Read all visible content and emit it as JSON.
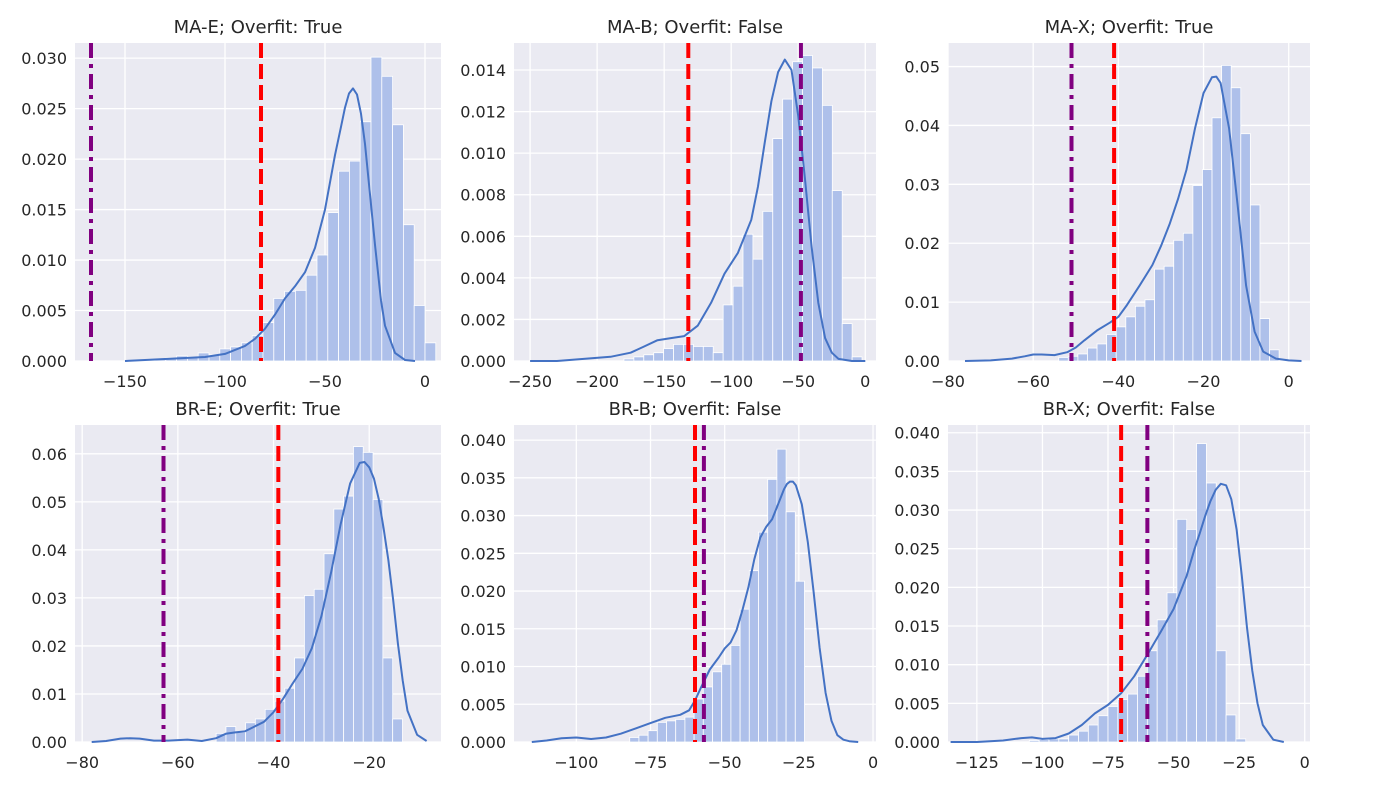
{
  "figure": {
    "grid": true,
    "colors": {
      "panel_background": "#eaeaf2",
      "grid": "#ffffff",
      "histogram": "#aec0ea",
      "kde_line": "#4472c4",
      "threshold_dashed": "#ff0000",
      "threshold_dashdot": "#800080"
    }
  },
  "chart_data": [
    {
      "type": "histogram",
      "title": "MA-E; Overfit: True",
      "xlim": [
        -175,
        8
      ],
      "ylim": [
        0,
        0.0315
      ],
      "xticks": [
        -150,
        -100,
        -50,
        0
      ],
      "xticklabels": [
        "−150",
        "−100",
        "−50",
        "0"
      ],
      "yticks": [
        0,
        0.005,
        0.01,
        0.015,
        0.02,
        0.025,
        0.03
      ],
      "yticklabels": [
        "0.000",
        "0.005",
        "0.010",
        "0.015",
        "0.020",
        "0.025",
        "0.030"
      ],
      "bins": {
        "start": -135,
        "width": 5.4,
        "values": [
          0.0002,
          0.0003,
          0.0005,
          0.0004,
          0.0008,
          0.0006,
          0.0012,
          0.0014,
          0.0018,
          0.0025,
          0.0038,
          0.0062,
          0.0069,
          0.007,
          0.0085,
          0.0105,
          0.0147,
          0.0188,
          0.0198,
          0.0237,
          0.0301,
          0.0282,
          0.0234,
          0.0135,
          0.0055,
          0.0018
        ]
      },
      "kde": {
        "x": [
          -150,
          -140,
          -130,
          -120,
          -110,
          -100,
          -95,
          -90,
          -85,
          -80,
          -75,
          -70,
          -65,
          -60,
          -55,
          -50,
          -45,
          -42,
          -40,
          -38,
          -36,
          -34,
          -32,
          -30,
          -28,
          -25,
          -22,
          -20,
          -15,
          -10,
          -5
        ],
        "y": [
          0.0,
          0.0001,
          0.0002,
          0.0003,
          0.0004,
          0.0007,
          0.0011,
          0.0015,
          0.0022,
          0.0032,
          0.0046,
          0.0062,
          0.0074,
          0.0088,
          0.0112,
          0.015,
          0.0204,
          0.0232,
          0.0251,
          0.0265,
          0.027,
          0.0264,
          0.0245,
          0.0215,
          0.0175,
          0.0115,
          0.006,
          0.0035,
          0.0008,
          0.0001,
          0.0
        ]
      },
      "dashed_line_x": -82,
      "dashdot_line_x": -167
    },
    {
      "type": "histogram",
      "title": "MA-B; Overfit: False",
      "xlim": [
        -262,
        8
      ],
      "ylim": [
        0,
        0.0153
      ],
      "xticks": [
        -250,
        -200,
        -150,
        -100,
        -50,
        0
      ],
      "xticklabels": [
        "−250",
        "−200",
        "−150",
        "−100",
        "−50",
        "0"
      ],
      "yticks": [
        0,
        0.002,
        0.004,
        0.006,
        0.008,
        0.01,
        0.012,
        0.014
      ],
      "yticklabels": [
        "0.000",
        "0.002",
        "0.004",
        "0.006",
        "0.008",
        "0.010",
        "0.012",
        "0.014"
      ],
      "bins": {
        "start": -180,
        "width": 7.4,
        "values": [
          0.0001,
          0.0002,
          0.0003,
          0.0004,
          0.0006,
          0.0008,
          0.0008,
          0.0007,
          0.0007,
          0.0004,
          0.0027,
          0.0036,
          0.0061,
          0.0049,
          0.0072,
          0.0107,
          0.0126,
          0.0144,
          0.0147,
          0.0141,
          0.0123,
          0.0082,
          0.0018,
          0.0002
        ]
      },
      "kde": {
        "x": [
          -250,
          -230,
          -210,
          -190,
          -175,
          -165,
          -155,
          -145,
          -135,
          -125,
          -115,
          -105,
          -95,
          -85,
          -80,
          -75,
          -70,
          -65,
          -60,
          -55,
          -50,
          -45,
          -40,
          -35,
          -30,
          -25,
          -20,
          -10,
          0
        ],
        "y": [
          0.0,
          0.0,
          0.0001,
          0.0002,
          0.0004,
          0.0007,
          0.001,
          0.0011,
          0.0012,
          0.0017,
          0.0028,
          0.0042,
          0.0052,
          0.0068,
          0.0084,
          0.0105,
          0.0125,
          0.0139,
          0.0145,
          0.014,
          0.0118,
          0.0088,
          0.0055,
          0.0028,
          0.0011,
          0.0004,
          0.0001,
          0.0,
          0.0
        ]
      },
      "dashed_line_x": -132,
      "dashdot_line_x": -48
    },
    {
      "type": "histogram",
      "title": "MA-X; Overfit: True",
      "xlim": [
        -80,
        5
      ],
      "ylim": [
        0,
        0.054
      ],
      "xticks": [
        -80,
        -60,
        -40,
        -20,
        0
      ],
      "xticklabels": [
        "−80",
        "−60",
        "−40",
        "−20",
        "0"
      ],
      "yticks": [
        0,
        0.01,
        0.02,
        0.03,
        0.04,
        0.05
      ],
      "yticklabels": [
        "0.00",
        "0.01",
        "0.02",
        "0.03",
        "0.04",
        "0.05"
      ],
      "bins": {
        "start": -54,
        "width": 2.25,
        "values": [
          0.0006,
          0.0008,
          0.0012,
          0.0022,
          0.0029,
          0.0045,
          0.0058,
          0.0075,
          0.0093,
          0.0104,
          0.0156,
          0.0161,
          0.0205,
          0.0217,
          0.0298,
          0.0325,
          0.0413,
          0.0502,
          0.0464,
          0.0386,
          0.0265,
          0.0072,
          0.0019
        ]
      },
      "kde": {
        "x": [
          -76,
          -70,
          -65,
          -62,
          -60,
          -58,
          -55,
          -52,
          -50,
          -48,
          -45,
          -42,
          -40,
          -38,
          -35,
          -32,
          -30,
          -28,
          -26,
          -24,
          -22,
          -20,
          -18,
          -17,
          -16,
          -14,
          -12,
          -10,
          -8,
          -6,
          -3,
          0,
          3
        ],
        "y": [
          0.0,
          0.0001,
          0.0004,
          0.0008,
          0.0011,
          0.0011,
          0.001,
          0.0015,
          0.0023,
          0.0035,
          0.0052,
          0.0065,
          0.0075,
          0.0095,
          0.0128,
          0.0163,
          0.0195,
          0.0232,
          0.0275,
          0.0325,
          0.0395,
          0.0455,
          0.0482,
          0.0483,
          0.0472,
          0.0395,
          0.0265,
          0.0128,
          0.005,
          0.0016,
          0.0004,
          0.0001,
          0.0
        ]
      },
      "dashed_line_x": -41,
      "dashdot_line_x": -51
    },
    {
      "type": "histogram",
      "title": "BR-E; Overfit: True",
      "xlim": [
        -81.5,
        -5
      ],
      "ylim": [
        0,
        0.066
      ],
      "xticks": [
        -80,
        -60,
        -40,
        -20
      ],
      "xticklabels": [
        "−80",
        "−60",
        "−40",
        "−20"
      ],
      "yticks": [
        0,
        0.01,
        0.02,
        0.03,
        0.04,
        0.05,
        0.06
      ],
      "yticklabels": [
        "0.00",
        "0.01",
        "0.02",
        "0.03",
        "0.04",
        "0.05",
        "0.06"
      ],
      "bins": {
        "start": -52,
        "width": 2.05,
        "values": [
          0.0018,
          0.0032,
          0.002,
          0.004,
          0.0048,
          0.0068,
          0.0085,
          0.0112,
          0.0175,
          0.0305,
          0.0318,
          0.0392,
          0.0485,
          0.0512,
          0.0615,
          0.0603,
          0.0505,
          0.0175,
          0.0048
        ]
      },
      "kde": {
        "x": [
          -78,
          -75,
          -72,
          -70,
          -68,
          -65,
          -62,
          -58,
          -55,
          -52,
          -50,
          -48,
          -46,
          -44,
          -42,
          -40,
          -38,
          -36,
          -34,
          -32,
          -30,
          -28,
          -26,
          -24,
          -22,
          -21,
          -20,
          -19,
          -18,
          -17,
          -16,
          -15,
          -14,
          -13,
          -12,
          -10,
          -8
        ],
        "y": [
          0.0,
          0.0002,
          0.0007,
          0.0008,
          0.0007,
          0.0003,
          0.0003,
          0.0005,
          0.0002,
          0.0008,
          0.0017,
          0.002,
          0.0022,
          0.0032,
          0.0042,
          0.0062,
          0.009,
          0.0122,
          0.0152,
          0.0195,
          0.0262,
          0.0352,
          0.0452,
          0.0538,
          0.0581,
          0.0583,
          0.0572,
          0.0548,
          0.0505,
          0.0445,
          0.0378,
          0.0295,
          0.0205,
          0.0128,
          0.0065,
          0.0015,
          0.0002
        ]
      },
      "dashed_line_x": -39,
      "dashdot_line_x": -63
    },
    {
      "type": "histogram",
      "title": "BR-B; Overfit: False",
      "xlim": [
        -121,
        1
      ],
      "ylim": [
        0,
        0.042
      ],
      "xticks": [
        -100,
        -75,
        -50,
        -25,
        0
      ],
      "xticklabels": [
        "−100",
        "−75",
        "−50",
        "−25",
        "0"
      ],
      "yticks": [
        0,
        0.005,
        0.01,
        0.015,
        0.02,
        0.025,
        0.03,
        0.035,
        0.04
      ],
      "yticklabels": [
        "0.000",
        "0.005",
        "0.010",
        "0.015",
        "0.020",
        "0.025",
        "0.030",
        "0.035",
        "0.040"
      ],
      "bins": {
        "start": -82,
        "width": 3.1,
        "values": [
          0.0006,
          0.0009,
          0.0015,
          0.0026,
          0.0028,
          0.003,
          0.0033,
          0.0057,
          0.0073,
          0.0093,
          0.0103,
          0.0128,
          0.0176,
          0.0227,
          0.0278,
          0.0348,
          0.0388,
          0.0305,
          0.0213
        ]
      },
      "kde": {
        "x": [
          -115,
          -110,
          -105,
          -100,
          -95,
          -90,
          -85,
          -80,
          -75,
          -70,
          -65,
          -62,
          -60,
          -58,
          -55,
          -52,
          -50,
          -48,
          -46,
          -44,
          -42,
          -40,
          -38,
          -36,
          -34,
          -32,
          -30,
          -29,
          -28,
          -27,
          -26,
          -24,
          -22,
          -20,
          -18,
          -16,
          -14,
          -12,
          -10,
          -8,
          -5
        ],
        "y": [
          0.0,
          0.0002,
          0.0005,
          0.0006,
          0.0004,
          0.0006,
          0.0011,
          0.0018,
          0.0025,
          0.0032,
          0.0036,
          0.0042,
          0.0055,
          0.0072,
          0.0096,
          0.0112,
          0.0124,
          0.0132,
          0.0148,
          0.0175,
          0.0205,
          0.0242,
          0.0271,
          0.0285,
          0.0295,
          0.0315,
          0.0335,
          0.0342,
          0.0345,
          0.0345,
          0.034,
          0.0315,
          0.0265,
          0.0198,
          0.0125,
          0.0065,
          0.0028,
          0.0009,
          0.0003,
          0.0001,
          0.0
        ]
      },
      "dashed_line_x": -60,
      "dashdot_line_x": -57
    },
    {
      "type": "histogram",
      "title": "BR-X; Overfit: False",
      "xlim": [
        -136,
        2
      ],
      "ylim": [
        0,
        0.041
      ],
      "xticks": [
        -125,
        -100,
        -75,
        -50,
        -25,
        0
      ],
      "xticklabels": [
        "−125",
        "−100",
        "−75",
        "−50",
        "−25",
        "0"
      ],
      "yticks": [
        0,
        0.005,
        0.01,
        0.015,
        0.02,
        0.025,
        0.03,
        0.035,
        0.04
      ],
      "yticklabels": [
        "0.000",
        "0.005",
        "0.010",
        "0.015",
        "0.020",
        "0.025",
        "0.030",
        "0.035",
        "0.040"
      ],
      "bins": {
        "start": -105,
        "width": 3.75,
        "values": [
          0.0002,
          0.0003,
          0.0004,
          0.0004,
          0.0009,
          0.0014,
          0.0022,
          0.0034,
          0.0046,
          0.0055,
          0.0062,
          0.0085,
          0.0118,
          0.0158,
          0.0193,
          0.0288,
          0.0275,
          0.0386,
          0.0335,
          0.0118,
          0.0035,
          0.0004
        ]
      },
      "kde": {
        "x": [
          -135,
          -125,
          -115,
          -108,
          -104,
          -100,
          -95,
          -90,
          -85,
          -80,
          -75,
          -70,
          -65,
          -60,
          -55,
          -50,
          -45,
          -42,
          -40,
          -38,
          -36,
          -34,
          -32,
          -30,
          -28,
          -26,
          -24,
          -22,
          -20,
          -18,
          -16,
          -12,
          -8
        ],
        "y": [
          0.0,
          0.0,
          0.0002,
          0.0005,
          0.0006,
          0.0004,
          0.0005,
          0.0011,
          0.0022,
          0.0037,
          0.0048,
          0.0063,
          0.0085,
          0.0113,
          0.0142,
          0.0172,
          0.0215,
          0.025,
          0.027,
          0.0292,
          0.0311,
          0.0326,
          0.0334,
          0.0332,
          0.0314,
          0.0275,
          0.0215,
          0.0148,
          0.0092,
          0.005,
          0.0022,
          0.0003,
          0.0
        ]
      },
      "dashed_line_x": -70,
      "dashdot_line_x": -60
    }
  ]
}
